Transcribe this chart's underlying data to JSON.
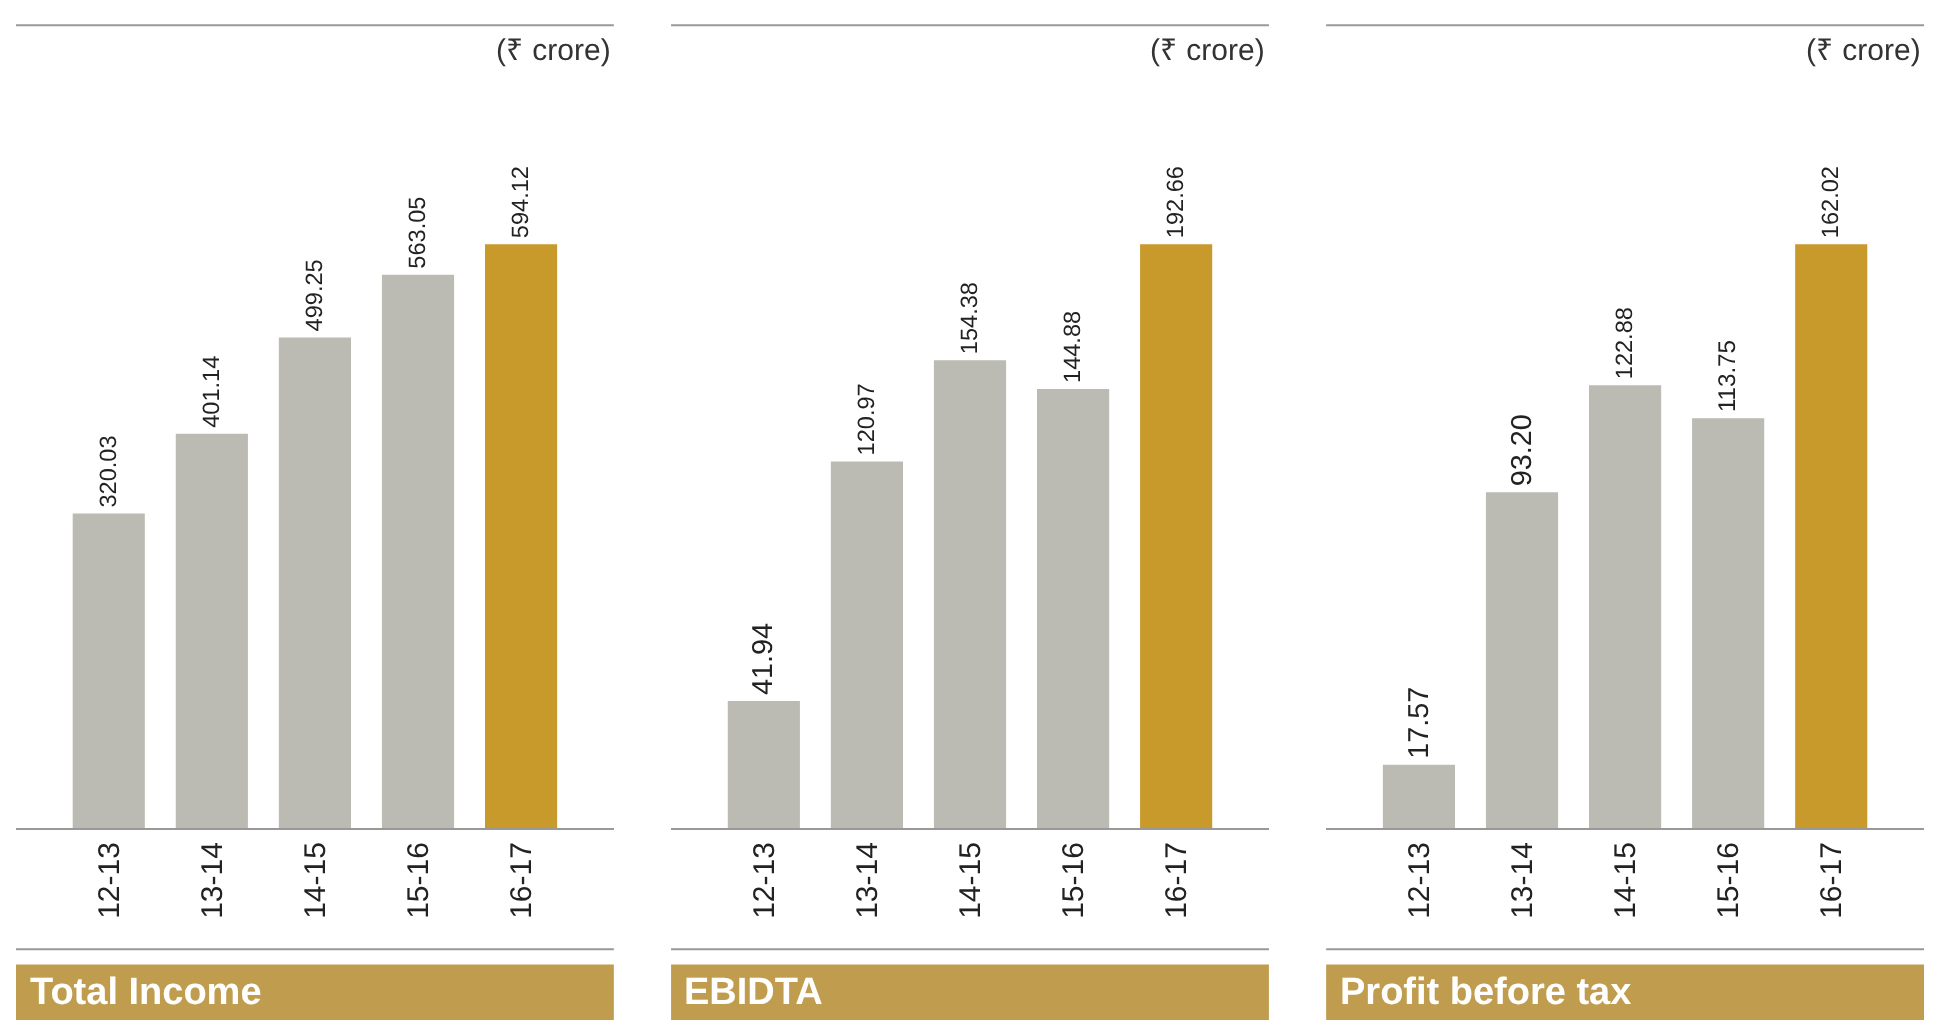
{
  "chart_data": [
    {
      "type": "bar",
      "title": "Total Income",
      "annotations": [
        "(₹ crore)"
      ],
      "categories": [
        "12-13",
        "13-14",
        "14-15",
        "15-16",
        "16-17"
      ],
      "values": [
        320.03,
        401.14,
        499.25,
        563.05,
        594.12
      ],
      "value_labels": [
        "320.03",
        "401.14",
        "499.25",
        "563.05",
        "594.12"
      ],
      "colors": [
        "#bbbbb3",
        "#bbbbb3",
        "#bbbbb3",
        "#bbbbb3",
        "#c8992b"
      ]
    },
    {
      "type": "bar",
      "title": "EBIDTA",
      "annotations": [
        "(₹ crore)"
      ],
      "categories": [
        "12-13",
        "13-14",
        "14-15",
        "15-16",
        "16-17"
      ],
      "values": [
        41.94,
        120.97,
        154.38,
        144.88,
        192.66
      ],
      "value_labels": [
        "41.94",
        "120.97",
        "154.38",
        "144.88",
        "192.66"
      ],
      "colors": [
        "#bbbbb3",
        "#bbbbb3",
        "#bbbbb3",
        "#bbbbb3",
        "#c8992b"
      ]
    },
    {
      "type": "bar",
      "title": "Profit before tax",
      "annotations": [
        "(₹ crore)"
      ],
      "categories": [
        "12-13",
        "13-14",
        "14-15",
        "15-16",
        "16-17"
      ],
      "values": [
        17.57,
        93.2,
        122.88,
        113.75,
        162.02
      ],
      "value_labels": [
        "17.57",
        "93.20",
        "122.88",
        "113.75",
        "162.02"
      ],
      "colors": [
        "#bbbbb3",
        "#bbbbb3",
        "#bbbbb3",
        "#bbbbb3",
        "#c8992b"
      ]
    }
  ]
}
